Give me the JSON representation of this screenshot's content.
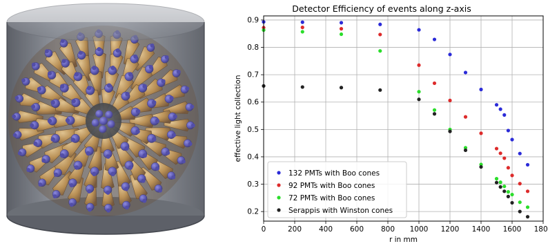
{
  "figure": {
    "illustration": "detector-with-pmt-array"
  },
  "colors": {
    "cylinder": "#777b84",
    "cylinder_dark": "#4a4d55",
    "cone": "#c08a3e",
    "cone_dark": "#6b4420",
    "pmt": "#4b45b8",
    "pmt_dark": "#2a2472"
  },
  "chart_data": {
    "type": "scatter",
    "title": "Detector Efficiency of events along z-axis",
    "xlabel": "r in mm",
    "ylabel": "effective light collection",
    "xlim": [
      0,
      1800
    ],
    "ylim": [
      0.165,
      0.915
    ],
    "xticks": [
      0,
      200,
      400,
      600,
      800,
      1000,
      1200,
      1400,
      1600,
      1800
    ],
    "yticks": [
      0.2,
      0.3,
      0.4,
      0.5,
      0.6,
      0.7,
      0.8,
      0.9
    ],
    "xtick_labels": [
      "0",
      "200",
      "400",
      "600",
      "800",
      "1000",
      "1200",
      "1400",
      "1600",
      "1800"
    ],
    "ytick_labels": [
      "0.2",
      "0.3",
      "0.4",
      "0.5",
      "0.6",
      "0.7",
      "0.8",
      "0.9"
    ],
    "grid": true,
    "legend_position": "bottom-left",
    "series": [
      {
        "name": "132 PMTs with Boo cones",
        "color": "#2b2bd8",
        "points": [
          [
            0,
            0.893
          ],
          [
            250,
            0.892
          ],
          [
            500,
            0.89
          ],
          [
            750,
            0.884
          ],
          [
            1000,
            0.864
          ],
          [
            1100,
            0.829
          ],
          [
            1200,
            0.774
          ],
          [
            1300,
            0.708
          ],
          [
            1400,
            0.646
          ],
          [
            1500,
            0.59
          ],
          [
            1525,
            0.574
          ],
          [
            1550,
            0.553
          ],
          [
            1575,
            0.496
          ],
          [
            1600,
            0.463
          ],
          [
            1650,
            0.412
          ],
          [
            1700,
            0.371
          ]
        ]
      },
      {
        "name": "92 PMTs with Boo cones",
        "color": "#dd2b2b",
        "points": [
          [
            0,
            0.872
          ],
          [
            250,
            0.873
          ],
          [
            500,
            0.868
          ],
          [
            750,
            0.847
          ],
          [
            1000,
            0.735
          ],
          [
            1100,
            0.669
          ],
          [
            1200,
            0.606
          ],
          [
            1300,
            0.546
          ],
          [
            1400,
            0.486
          ],
          [
            1500,
            0.43
          ],
          [
            1525,
            0.413
          ],
          [
            1550,
            0.395
          ],
          [
            1575,
            0.36
          ],
          [
            1600,
            0.332
          ],
          [
            1650,
            0.302
          ],
          [
            1700,
            0.274
          ]
        ]
      },
      {
        "name": "72 PMTs with Boo cones",
        "color": "#2bdd2b",
        "points": [
          [
            0,
            0.863
          ],
          [
            250,
            0.857
          ],
          [
            500,
            0.848
          ],
          [
            750,
            0.787
          ],
          [
            1000,
            0.638
          ],
          [
            1100,
            0.571
          ],
          [
            1200,
            0.5
          ],
          [
            1300,
            0.433
          ],
          [
            1400,
            0.372
          ],
          [
            1500,
            0.32
          ],
          [
            1525,
            0.307
          ],
          [
            1550,
            0.292
          ],
          [
            1575,
            0.272
          ],
          [
            1600,
            0.262
          ],
          [
            1650,
            0.234
          ],
          [
            1700,
            0.216
          ]
        ]
      },
      {
        "name": "Serappis with Winston cones",
        "color": "#222222",
        "points": [
          [
            0,
            0.659
          ],
          [
            250,
            0.655
          ],
          [
            500,
            0.653
          ],
          [
            750,
            0.644
          ],
          [
            1000,
            0.61
          ],
          [
            1100,
            0.557
          ],
          [
            1200,
            0.493
          ],
          [
            1300,
            0.424
          ],
          [
            1400,
            0.363
          ],
          [
            1500,
            0.306
          ],
          [
            1525,
            0.29
          ],
          [
            1550,
            0.274
          ],
          [
            1575,
            0.255
          ],
          [
            1600,
            0.232
          ],
          [
            1650,
            0.2
          ],
          [
            1700,
            0.181
          ]
        ]
      }
    ]
  }
}
